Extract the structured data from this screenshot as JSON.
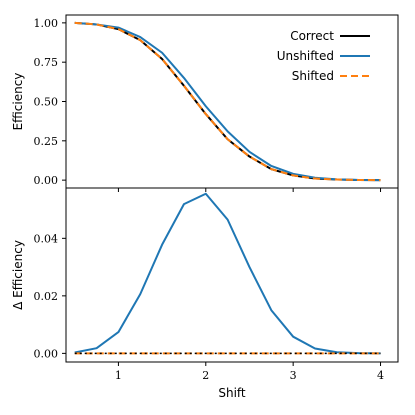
{
  "chart_data": {
    "type": "line",
    "shared_x": {
      "label": "Shift",
      "xlim": [
        0.4,
        4.2
      ],
      "ticks": [
        1,
        2,
        3,
        4
      ],
      "tick_labels": [
        "1",
        "2",
        "3",
        "4"
      ]
    },
    "panels": [
      {
        "ylabel": "Efficiency",
        "ylim": [
          -0.05,
          1.05
        ],
        "ticks": [
          0.0,
          0.25,
          0.5,
          0.75,
          1.0
        ],
        "tick_labels": [
          "0.00",
          "0.25",
          "0.50",
          "0.75",
          "1.00"
        ],
        "legend": {
          "placement": "top-right"
        },
        "series": [
          {
            "name": "Correct",
            "color": "#000000",
            "dash": "solid",
            "x": [
              0.5,
              0.75,
              1.0,
              1.25,
              1.5,
              1.75,
              2.0,
              2.25,
              2.5,
              2.75,
              3.0,
              3.25,
              3.5,
              3.75,
              4.0
            ],
            "y": [
              1.0,
              0.99,
              0.96,
              0.89,
              0.77,
              0.6,
              0.42,
              0.26,
              0.15,
              0.07,
              0.03,
              0.01,
              0.004,
              0.001,
              0.0
            ]
          },
          {
            "name": "Unshifted",
            "color": "#1f77b4",
            "dash": "solid",
            "x": [
              0.5,
              0.75,
              1.0,
              1.25,
              1.5,
              1.75,
              2.0,
              2.25,
              2.5,
              2.75,
              3.0,
              3.25,
              3.5,
              3.75,
              4.0
            ],
            "y": [
              1.0,
              0.99,
              0.97,
              0.91,
              0.81,
              0.65,
              0.47,
              0.31,
              0.18,
              0.09,
              0.04,
              0.015,
              0.005,
              0.001,
              0.0
            ]
          },
          {
            "name": "Shifted",
            "color": "#ff7f0e",
            "dash": "dashed",
            "x": [
              0.5,
              0.75,
              1.0,
              1.25,
              1.5,
              1.75,
              2.0,
              2.25,
              2.5,
              2.75,
              3.0,
              3.25,
              3.5,
              3.75,
              4.0
            ],
            "y": [
              1.0,
              0.99,
              0.96,
              0.89,
              0.77,
              0.6,
              0.42,
              0.26,
              0.15,
              0.07,
              0.03,
              0.01,
              0.004,
              0.001,
              0.0
            ]
          }
        ]
      },
      {
        "ylabel": "Δ Efficiency",
        "ylim": [
          -0.003,
          0.0575
        ],
        "ticks": [
          0.0,
          0.02,
          0.04
        ],
        "tick_labels": [
          "0.00",
          "0.02",
          "0.04"
        ],
        "series": [
          {
            "name": "Unshifted",
            "color": "#1f77b4",
            "dash": "solid",
            "x": [
              0.5,
              0.75,
              1.0,
              1.25,
              1.5,
              1.75,
              2.0,
              2.25,
              2.5,
              2.75,
              3.0,
              3.25,
              3.5,
              3.75,
              4.0
            ],
            "y": [
              0.0003,
              0.0018,
              0.0074,
              0.0206,
              0.0378,
              0.0519,
              0.0555,
              0.0465,
              0.03,
              0.015,
              0.0058,
              0.0017,
              0.0004,
              8e-05,
              1e-05
            ]
          },
          {
            "name": "Shifted",
            "color": "#ff7f0e",
            "dash": "dashed",
            "x": [
              0.5,
              0.75,
              1.0,
              1.25,
              1.5,
              1.75,
              2.0,
              2.25,
              2.5,
              2.75,
              3.0,
              3.25,
              3.5,
              3.75,
              4.0
            ],
            "y": [
              0,
              0,
              0,
              0,
              0,
              0,
              0,
              0,
              0,
              0,
              0,
              0,
              0,
              0,
              0
            ]
          },
          {
            "name": "Correct",
            "color": "#000000",
            "dash": "dotted",
            "x": [
              0.5,
              0.75,
              1.0,
              1.25,
              1.5,
              1.75,
              2.0,
              2.25,
              2.5,
              2.75,
              3.0,
              3.25,
              3.5,
              3.75,
              4.0
            ],
            "y": [
              0,
              0,
              0,
              0,
              0,
              0,
              0,
              0,
              0,
              0,
              0,
              0,
              0,
              0,
              0
            ]
          }
        ]
      }
    ]
  }
}
